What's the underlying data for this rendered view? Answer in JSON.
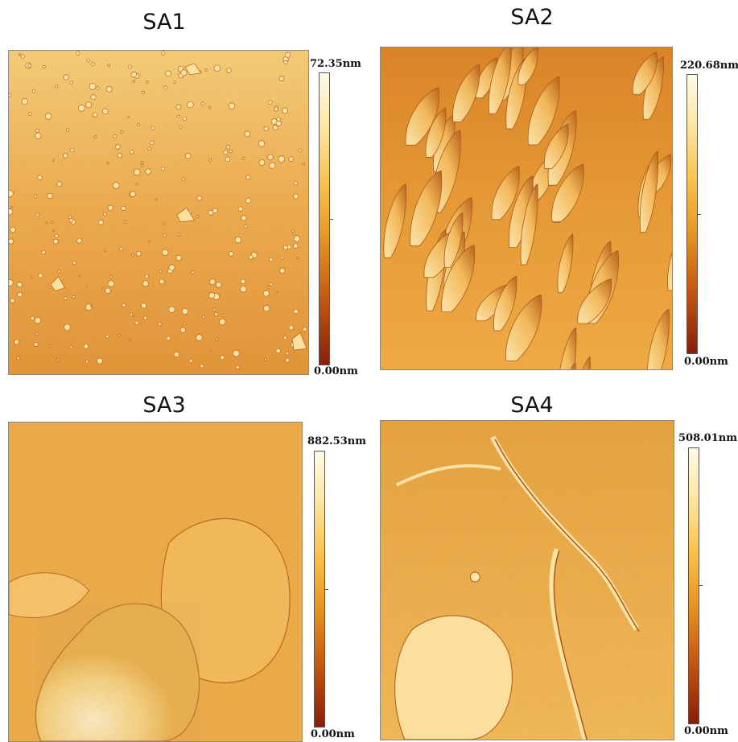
{
  "panels": [
    {
      "title": "SA1",
      "scale_max": "72.35nm",
      "scale_min": "0.00nm"
    },
    {
      "title": "SA2",
      "scale_max": "220.68nm",
      "scale_min": "0.00nm"
    },
    {
      "title": "SA3",
      "scale_max": "882.53nm",
      "scale_min": "0.00nm"
    },
    {
      "title": "SA4",
      "scale_max": "508.01nm",
      "scale_min": "0.00nm"
    }
  ],
  "colors": {
    "low": "#8a1d0a",
    "mid": "#e99a25",
    "high": "#fffbe8"
  }
}
